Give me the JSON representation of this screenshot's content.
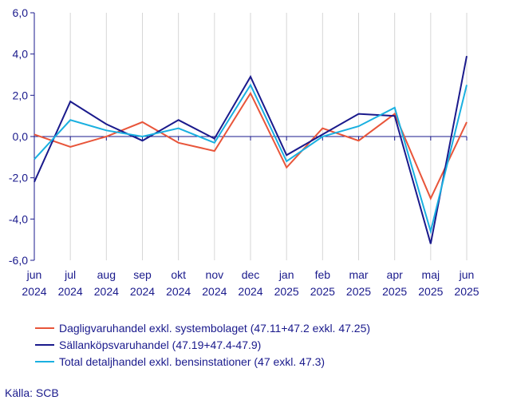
{
  "chart_data": {
    "type": "line",
    "x": [
      [
        "jun",
        "2024"
      ],
      [
        "jul",
        "2024"
      ],
      [
        "aug",
        "2024"
      ],
      [
        "sep",
        "2024"
      ],
      [
        "okt",
        "2024"
      ],
      [
        "nov",
        "2024"
      ],
      [
        "dec",
        "2024"
      ],
      [
        "jan",
        "2025"
      ],
      [
        "feb",
        "2025"
      ],
      [
        "mar",
        "2025"
      ],
      [
        "apr",
        "2025"
      ],
      [
        "maj",
        "2025"
      ],
      [
        "jun",
        "2025"
      ]
    ],
    "yticks": [
      "6,0",
      "4,0",
      "2,0",
      "0,0",
      "-2,0",
      "-4,0",
      "-6,0"
    ],
    "ylim": [
      -6,
      6
    ],
    "grid": "vertical",
    "legend_position": "bottom",
    "series": [
      {
        "name": "Dagligvaruhandel exkl. systembolaget (47.11+47.2 exkl. 47.25)",
        "color": "#e8553a",
        "values": [
          0.1,
          -0.5,
          0.0,
          0.7,
          -0.3,
          -0.7,
          2.1,
          -1.5,
          0.4,
          -0.2,
          1.1,
          -3.0,
          0.7
        ]
      },
      {
        "name": "Sällanköpsvaruhandel (47.19+47.4-47.9)",
        "color": "#1a1a8c",
        "values": [
          -2.2,
          1.7,
          0.6,
          -0.2,
          0.8,
          -0.1,
          2.9,
          -0.9,
          0.1,
          1.1,
          1.0,
          -5.2,
          3.9
        ]
      },
      {
        "name": "Total detaljhandel exkl. bensinstationer (47 exkl. 47.3)",
        "color": "#1ab0e0",
        "values": [
          -1.1,
          0.8,
          0.3,
          0.0,
          0.4,
          -0.3,
          2.5,
          -1.2,
          0.0,
          0.5,
          1.4,
          -4.6,
          2.5
        ]
      }
    ]
  },
  "source": "Källa: SCB"
}
